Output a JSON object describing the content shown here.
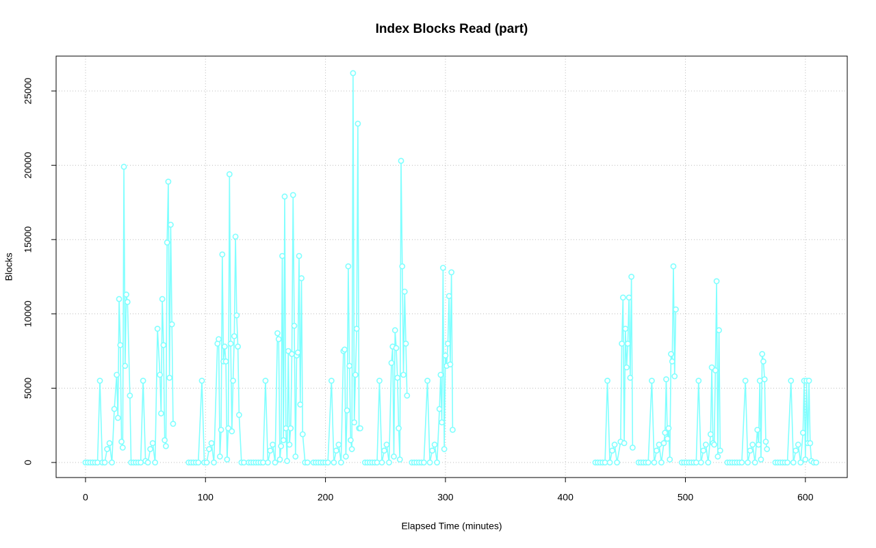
{
  "chart_data": {
    "type": "line",
    "title": "Index Blocks Read (part)",
    "x_label": "Elapsed Time (minutes)",
    "y_label": "Blocks",
    "xlim": [
      -24.5,
      634.9
    ],
    "ylim": [
      -1013,
      27348
    ],
    "xticks": [
      0,
      100,
      200,
      300,
      400,
      500,
      600
    ],
    "yticks": [
      0,
      5000,
      10000,
      15000,
      20000,
      25000
    ],
    "grid": true,
    "markers": true,
    "series": [
      {
        "color": "#80ffff",
        "x": [
          0,
          2,
          4,
          6,
          8,
          10,
          12,
          14,
          16,
          18,
          20,
          22,
          24,
          26,
          27,
          28,
          29,
          30,
          31,
          32,
          33,
          34,
          35,
          37,
          38,
          40,
          42,
          44,
          46,
          48,
          50,
          52,
          54,
          56,
          58,
          60,
          62,
          63,
          64,
          65,
          66,
          67,
          68,
          69,
          70,
          71,
          72,
          73,
          80,
          86,
          88,
          90,
          92,
          94,
          97,
          99,
          101,
          103,
          105,
          107,
          110,
          111,
          112,
          113,
          114,
          115,
          116,
          117,
          118,
          119,
          120,
          121,
          122,
          123,
          124,
          125,
          126,
          127,
          128,
          130,
          132,
          134,
          136,
          138,
          140,
          142,
          144,
          146,
          148,
          150,
          152,
          154,
          156,
          158,
          160,
          161,
          162,
          163,
          164,
          165,
          166,
          167,
          168,
          169,
          170,
          171,
          172,
          173,
          174,
          175,
          176,
          177,
          178,
          179,
          180,
          181,
          183,
          185,
          187,
          190,
          192,
          194,
          196,
          198,
          200,
          202,
          205,
          207,
          209,
          211,
          213,
          215,
          216,
          217,
          218,
          219,
          220,
          221,
          222,
          223,
          224,
          225,
          226,
          227,
          228,
          229,
          231,
          233,
          235,
          237,
          239,
          241,
          243,
          245,
          247,
          249,
          251,
          253,
          255,
          256,
          257,
          258,
          259,
          260,
          261,
          262,
          263,
          264,
          265,
          266,
          267,
          268,
          270,
          272,
          274,
          276,
          278,
          280,
          282,
          285,
          287,
          289,
          291,
          293,
          295,
          296,
          297,
          298,
          299,
          300,
          301,
          302,
          303,
          304,
          305,
          306,
          310,
          425,
          427,
          429,
          431,
          433,
          435,
          437,
          439,
          441,
          443,
          446,
          447,
          448,
          449,
          450,
          451,
          452,
          453,
          454,
          455,
          456,
          458,
          461,
          463,
          465,
          467,
          469,
          472,
          474,
          476,
          478,
          480,
          482,
          483,
          484,
          485,
          486,
          487,
          488,
          489,
          490,
          491,
          492,
          494,
          497,
          499,
          501,
          503,
          505,
          507,
          509,
          511,
          513,
          515,
          517,
          519,
          521,
          522,
          523,
          524,
          525,
          526,
          527,
          528,
          529,
          531,
          535,
          537,
          539,
          541,
          543,
          545,
          547,
          550,
          552,
          554,
          556,
          558,
          560,
          561,
          562,
          563,
          564,
          565,
          566,
          567,
          568,
          571,
          575,
          577,
          579,
          581,
          583,
          585,
          588,
          590,
          592,
          594,
          596,
          598,
          599,
          600,
          601,
          602,
          603,
          604,
          605,
          607,
          609
        ],
        "values": [
          0,
          0,
          0,
          0,
          0,
          0,
          5500,
          0,
          0,
          900,
          1300,
          0,
          3600,
          5900,
          3000,
          11000,
          7900,
          1400,
          1000,
          19900,
          6500,
          11300,
          10800,
          4500,
          0,
          0,
          0,
          0,
          0,
          5500,
          100,
          0,
          900,
          1300,
          0,
          9000,
          5900,
          3300,
          11000,
          7900,
          1500,
          1100,
          14800,
          18900,
          5700,
          16000,
          9300,
          2600,
          null,
          0,
          0,
          0,
          0,
          0,
          5500,
          0,
          0,
          900,
          1300,
          0,
          8000,
          8300,
          400,
          2200,
          14000,
          6800,
          7800,
          6800,
          200,
          2300,
          19400,
          8000,
          2100,
          5500,
          8500,
          15200,
          9900,
          7800,
          3200,
          0,
          0,
          null,
          0,
          0,
          0,
          0,
          0,
          0,
          0,
          5500,
          0,
          800,
          1200,
          0,
          8700,
          8300,
          200,
          1100,
          13900,
          1500,
          17900,
          2300,
          100,
          7500,
          1200,
          2300,
          7300,
          18000,
          9200,
          400,
          7200,
          7400,
          13900,
          3900,
          12400,
          1900,
          0,
          0,
          null,
          0,
          0,
          0,
          0,
          0,
          0,
          0,
          5500,
          0,
          800,
          1200,
          0,
          7500,
          7600,
          400,
          3500,
          13200,
          6500,
          1500,
          900,
          26200,
          2700,
          5900,
          9000,
          22800,
          2300,
          2300,
          null,
          0,
          0,
          0,
          0,
          0,
          0,
          5500,
          0,
          800,
          1200,
          0,
          6700,
          7800,
          400,
          8900,
          7700,
          5700,
          2300,
          200,
          20300,
          13200,
          5900,
          11500,
          8000,
          4500,
          null,
          0,
          0,
          0,
          0,
          0,
          0,
          5500,
          0,
          800,
          1200,
          0,
          3600,
          5900,
          2700,
          13100,
          900,
          7200,
          6500,
          8000,
          11200,
          6600,
          12800,
          2200,
          null,
          0,
          0,
          0,
          0,
          0,
          5500,
          0,
          800,
          1200,
          0,
          1400,
          8000,
          11100,
          1300,
          9000,
          6400,
          8000,
          11100,
          5700,
          12500,
          1000,
          null,
          0,
          0,
          0,
          0,
          0,
          5500,
          0,
          800,
          1200,
          0,
          1300,
          2000,
          5600,
          1600,
          2300,
          200,
          7300,
          6800,
          13200,
          5800,
          10300,
          null,
          0,
          0,
          0,
          0,
          0,
          0,
          0,
          5500,
          0,
          800,
          1200,
          0,
          1900,
          6400,
          1300,
          1200,
          6200,
          12200,
          400,
          8900,
          800,
          null,
          0,
          0,
          0,
          0,
          0,
          0,
          0,
          5500,
          0,
          800,
          1200,
          0,
          2200,
          1200,
          5500,
          200,
          7300,
          6800,
          5600,
          1400,
          900,
          null,
          0,
          0,
          0,
          0,
          0,
          0,
          5500,
          0,
          800,
          1200,
          0,
          2000,
          5500,
          200,
          5500,
          1300,
          5500,
          1300,
          100,
          0,
          0
        ]
      }
    ]
  }
}
